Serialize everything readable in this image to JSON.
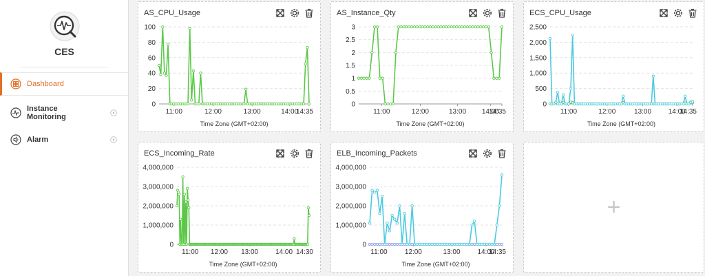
{
  "app": {
    "brand": "CES"
  },
  "nav": {
    "dashboard": "Dashboard",
    "instance_monitoring_line1": "Instance",
    "instance_monitoring_line2": "Monitoring",
    "alarm": "Alarm"
  },
  "colors": {
    "accent": "#e27024",
    "green": "#5cc849",
    "cyan": "#4cc9e0",
    "blue": "#8c9ae8",
    "grid": "#e3e3e3"
  },
  "icons": {
    "fullscreen": "expand-icon",
    "settings": "gear-icon",
    "delete": "trash-icon"
  },
  "add_panel": {
    "symbol": "+"
  },
  "chart_data": [
    {
      "type": "line",
      "title": "AS_CPU_Usage",
      "xlabel": "Time Zone (GMT+02:00)",
      "ylabel": "",
      "ylim": [
        0,
        100
      ],
      "yticks": [
        "0",
        "20",
        "40",
        "60",
        "80",
        "100"
      ],
      "xticks": [
        "11:00",
        "12:00",
        "13:00",
        "14:00",
        "14:35"
      ],
      "series": [
        {
          "color": "#5cc849",
          "values": [
            50,
            38,
            100,
            40,
            37,
            77,
            0,
            0,
            0,
            0,
            0,
            0,
            0,
            0,
            0,
            0,
            0,
            98,
            5,
            43,
            0,
            0,
            0,
            40,
            0,
            0,
            0,
            0,
            0,
            0,
            0,
            0,
            0,
            0,
            0,
            0,
            0,
            0,
            0,
            0,
            0,
            0,
            0,
            0,
            0,
            0,
            0,
            0,
            19,
            0,
            0,
            0,
            0,
            0,
            0,
            0,
            0,
            0,
            0,
            0,
            0,
            0,
            0,
            0,
            0,
            0,
            0,
            0,
            0,
            0,
            0,
            0,
            0,
            0,
            0,
            0,
            0,
            0,
            0,
            0,
            0,
            52,
            73,
            0
          ]
        }
      ]
    },
    {
      "type": "line",
      "title": "AS_Instance_Qty",
      "xlabel": "Time Zone (GMT+02:00)",
      "ylabel": "",
      "ylim": [
        0,
        3
      ],
      "yticks": [
        "0",
        "0.5",
        "1",
        "1.5",
        "2",
        "2.5",
        "3"
      ],
      "xticks": [
        "11:00",
        "12:00",
        "13:00",
        "14:00",
        "14:35"
      ],
      "series": [
        {
          "color": "#5cc849",
          "values": [
            1,
            1,
            1,
            1,
            1,
            2,
            3,
            3,
            1,
            1,
            0,
            0,
            0,
            0,
            2,
            3,
            3,
            3,
            3,
            3,
            3,
            3,
            3,
            3,
            3,
            3,
            3,
            3,
            3,
            3,
            3,
            3,
            3,
            3,
            3,
            3,
            3,
            3,
            3,
            3,
            3,
            3,
            3,
            3,
            3,
            3,
            3,
            3,
            3,
            3,
            2,
            1,
            1,
            1,
            3
          ]
        }
      ]
    },
    {
      "type": "line",
      "title": "ECS_CPU_Usage",
      "xlabel": "Time Zone (GMT+02:00)",
      "ylabel": "",
      "ylim": [
        0,
        2500
      ],
      "yticks": [
        "0",
        "500",
        "1,000",
        "1,500",
        "2,000",
        "2,500"
      ],
      "xticks": [
        "11:00",
        "12:00",
        "13:00",
        "14:00",
        "14:35"
      ],
      "series": [
        {
          "color": "#4cc9e0",
          "values": [
            2120,
            0,
            0,
            50,
            380,
            0,
            0,
            300,
            0,
            0,
            0,
            500,
            2230,
            0,
            0,
            0,
            0,
            0,
            0,
            0,
            0,
            0,
            0,
            0,
            0,
            0,
            0,
            0,
            0,
            0,
            0,
            0,
            0,
            0,
            0,
            0,
            0,
            0,
            0,
            250,
            0,
            0,
            0,
            0,
            0,
            0,
            0,
            0,
            0,
            0,
            0,
            0,
            0,
            0,
            0,
            900,
            0,
            0,
            0,
            0,
            0,
            0,
            0,
            0,
            0,
            0,
            0,
            0,
            0,
            0,
            0,
            0,
            250,
            0,
            0,
            50,
            80
          ]
        },
        {
          "color": "#5cc849",
          "values": [
            0,
            0,
            0,
            40,
            0,
            0,
            0,
            50,
            0,
            0,
            0,
            60,
            40,
            0,
            0,
            0,
            0,
            0,
            0,
            0,
            0,
            0,
            0,
            0,
            0,
            0,
            0,
            0,
            0,
            0,
            0,
            0,
            0,
            0,
            0,
            0,
            0,
            0,
            0,
            40,
            0,
            0,
            0,
            0,
            0,
            0,
            0,
            0,
            0,
            0,
            0,
            0,
            0,
            0,
            0,
            0,
            0,
            0,
            0,
            0,
            0,
            0,
            0,
            0,
            0,
            0,
            0,
            0,
            0,
            0,
            0,
            0,
            30,
            0,
            0,
            60,
            40
          ]
        }
      ]
    },
    {
      "type": "line",
      "title": "ECS_Incoming_Rate",
      "xlabel": "Time Zone (GMT+02:00)",
      "ylabel": "",
      "ylim": [
        0,
        4000000
      ],
      "yticks": [
        "0",
        "1,000,000",
        "2,000,000",
        "3,000,000",
        "4,000,000"
      ],
      "xticks": [
        "11:00",
        "12:00",
        "13:00",
        "14:00",
        "14:30"
      ],
      "series": [
        {
          "color": "#5cc849",
          "values": [
            2000000,
            2800000,
            2700000,
            2600000,
            0,
            1300000,
            0,
            0,
            3500000,
            0,
            2600000,
            0,
            2200000,
            0,
            2900000,
            2300000,
            1900000,
            0,
            0,
            0,
            0,
            0,
            0,
            0,
            0,
            0,
            0,
            0,
            0,
            0,
            0,
            0,
            0,
            0,
            0,
            0,
            0,
            0,
            0,
            0,
            0,
            0,
            0,
            0,
            0,
            0,
            0,
            0,
            0,
            0,
            0,
            0,
            0,
            0,
            0,
            0,
            0,
            0,
            0,
            0,
            0,
            0,
            0,
            0,
            0,
            0,
            0,
            0,
            0,
            0,
            0,
            0,
            0,
            0,
            0,
            0,
            0,
            0,
            0,
            0,
            0,
            0,
            0,
            0,
            0,
            0,
            0,
            0,
            0,
            0,
            0,
            0,
            0,
            0,
            0,
            0,
            0,
            0,
            0,
            0,
            0,
            0,
            0,
            0,
            0,
            0,
            0,
            0,
            0,
            0,
            0,
            0,
            0,
            0,
            0,
            0,
            0,
            0,
            0,
            0,
            0,
            0,
            0,
            0,
            0,
            0,
            0,
            0,
            0,
            0,
            0,
            0,
            0,
            0,
            0,
            0,
            0,
            0,
            0,
            0,
            0,
            0,
            0,
            0,
            0,
            0,
            0,
            0,
            0,
            0,
            0,
            0,
            0,
            0,
            0,
            0,
            0,
            0,
            300000,
            0,
            0,
            0,
            0,
            0,
            0,
            0,
            0,
            0,
            0,
            0,
            0,
            0,
            0,
            0,
            0,
            0,
            0,
            1900000,
            1500000
          ]
        }
      ]
    },
    {
      "type": "line",
      "title": "ELB_Incoming_Packets",
      "xlabel": "Time Zone (GMT+02:00)",
      "ylabel": "",
      "ylim": [
        0,
        4000000
      ],
      "yticks": [
        "0",
        "1,000,000",
        "2,000,000",
        "3,000,000",
        "4,000,000"
      ],
      "xticks": [
        "11:00",
        "12:00",
        "13:00",
        "14:00",
        "14:35"
      ],
      "series": [
        {
          "color": "#4cc9e0",
          "values": [
            1100000,
            2800000,
            2700000,
            2800000,
            1600000,
            2500000,
            0,
            1100000,
            700000,
            1500000,
            1300000,
            1100000,
            2000000,
            0,
            1600000,
            0,
            0,
            2000000,
            0,
            0,
            0,
            0,
            0,
            0,
            0,
            0,
            0,
            0,
            0,
            0,
            0,
            0,
            0,
            0,
            0,
            0,
            0,
            0,
            0,
            0,
            0,
            1000000,
            1200000,
            0,
            0,
            0,
            0,
            0,
            0,
            0,
            0,
            1000000,
            2000000,
            3600000
          ]
        },
        {
          "color": "#8c9ae8",
          "values": [
            0,
            0,
            0,
            0,
            0,
            0,
            0,
            0,
            0,
            0,
            0,
            0,
            0,
            0,
            0,
            0,
            0,
            0,
            0,
            0,
            0,
            0,
            0,
            0,
            0,
            0,
            0,
            0,
            0,
            0,
            0,
            0,
            0,
            0,
            0,
            0,
            0,
            0,
            0,
            0,
            0,
            0,
            0,
            0,
            0,
            0,
            0,
            0,
            0,
            0,
            0,
            0,
            0,
            0
          ]
        }
      ]
    }
  ]
}
